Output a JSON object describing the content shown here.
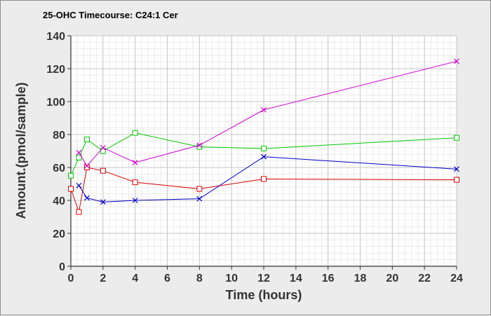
{
  "chart_data": {
    "type": "line",
    "title": "25-OHC Timecourse: C24:1 Cer",
    "xlabel": "Time (hours)",
    "ylabel": "Amount.(pmol/sample)",
    "xlim": [
      0,
      24
    ],
    "ylim": [
      0,
      140
    ],
    "xticks": [
      0,
      2,
      4,
      6,
      8,
      10,
      12,
      14,
      16,
      18,
      20,
      22,
      24
    ],
    "yticks": [
      0,
      20,
      40,
      60,
      80,
      100,
      120,
      140
    ],
    "xtick_labels": [
      "0",
      "2",
      "4",
      "6",
      "8",
      "10",
      "12",
      "14",
      "16",
      "18",
      "20",
      "22",
      "24"
    ],
    "ytick_labels": [
      "0",
      "20",
      "40",
      "60",
      "80",
      "100",
      "120",
      "140"
    ],
    "grid": true,
    "legend": "none",
    "series": [
      {
        "color": "#d90000",
        "marker": "square",
        "points": [
          [
            0,
            47
          ],
          [
            0.5,
            33
          ],
          [
            1,
            60
          ],
          [
            2,
            58
          ],
          [
            4,
            51
          ],
          [
            8,
            47
          ],
          [
            12,
            53
          ],
          [
            24,
            52.5
          ]
        ]
      },
      {
        "color": "#00c800",
        "marker": "square",
        "points": [
          [
            0,
            55
          ],
          [
            0.5,
            66
          ],
          [
            1,
            77
          ],
          [
            2,
            70
          ],
          [
            4,
            81
          ],
          [
            8,
            72.5
          ],
          [
            12,
            71.5
          ],
          [
            24,
            78
          ]
        ]
      },
      {
        "color": "#0000c8",
        "marker": "x",
        "points": [
          [
            0.5,
            49
          ],
          [
            1,
            41.5
          ],
          [
            2,
            39
          ],
          [
            4,
            40
          ],
          [
            8,
            41
          ],
          [
            12,
            66.5
          ],
          [
            24,
            59
          ]
        ]
      },
      {
        "color": "#d200d2",
        "marker": "x",
        "points": [
          [
            0.5,
            69
          ],
          [
            1,
            61
          ],
          [
            2,
            72
          ],
          [
            4,
            63
          ],
          [
            8,
            73.5
          ],
          [
            12,
            95
          ],
          [
            24,
            124.5
          ]
        ]
      }
    ]
  }
}
